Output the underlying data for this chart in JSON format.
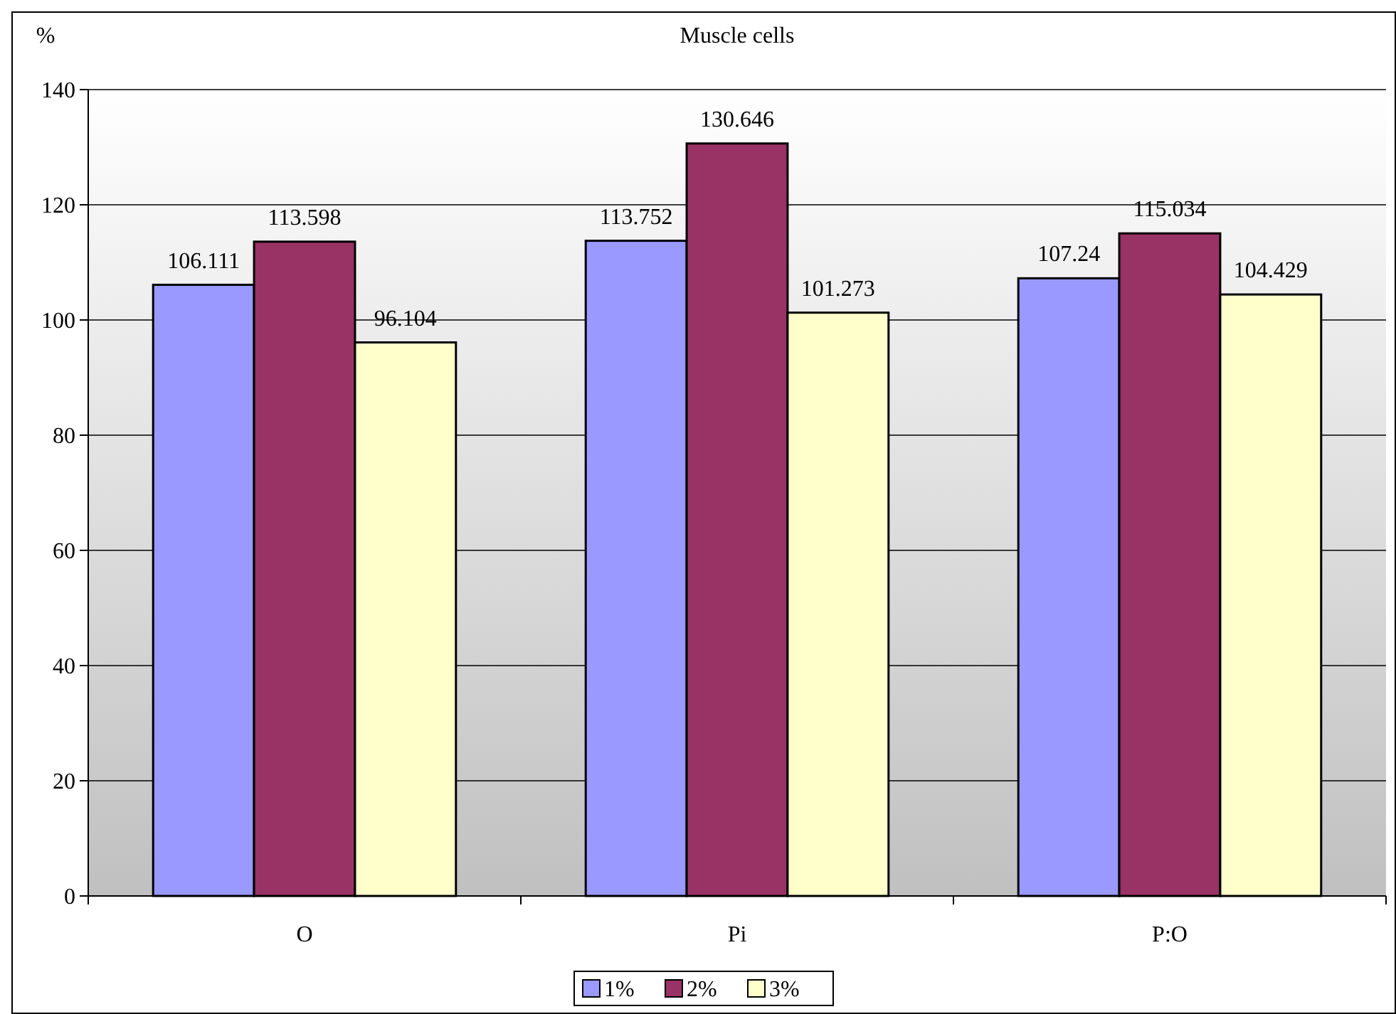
{
  "chart_data": {
    "type": "bar",
    "title": "Muscle cells",
    "ylabel": "%",
    "categories": [
      "O",
      "Pi",
      "P:O"
    ],
    "series": [
      {
        "name": "1%",
        "color": "#9999ff",
        "values": [
          106.111,
          113.752,
          107.24
        ]
      },
      {
        "name": "2%",
        "color": "#993366",
        "values": [
          113.598,
          130.646,
          115.034
        ]
      },
      {
        "name": "3%",
        "color": "#ffffcc",
        "values": [
          96.104,
          101.273,
          104.429
        ]
      }
    ],
    "ylim": [
      0,
      140
    ],
    "yticks": [
      0,
      20,
      40,
      60,
      80,
      100,
      120,
      140
    ],
    "grid": "y",
    "legend": "bottom",
    "data_labels": true
  }
}
